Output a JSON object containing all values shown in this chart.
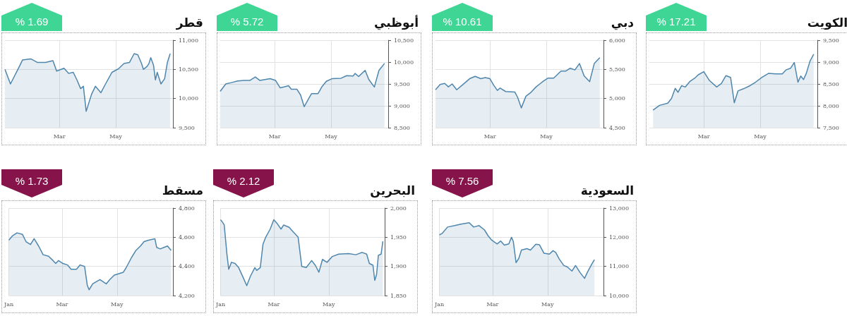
{
  "chart_data": [
    {
      "type": "area",
      "title": "قطر",
      "annotations": [
        "% 1.69"
      ],
      "color": "#4f86ad",
      "marker": "none",
      "grid": true,
      "xlim": [
        "--01-01",
        "--07-02"
      ],
      "xticks": [
        {
          "value": "--03-01",
          "label": "Mar"
        },
        {
          "value": "--05-01",
          "label": "May"
        }
      ],
      "ylim": [
        9500,
        11000
      ],
      "yticks": [
        {
          "value": 9500,
          "label": "9,500"
        },
        {
          "value": 10000,
          "label": "10,000"
        },
        {
          "value": 10500,
          "label": "10,500"
        },
        {
          "value": 11000,
          "label": "11,000"
        }
      ],
      "x": [
        "--01-01",
        "--01-07",
        "--01-16",
        "--01-20",
        "--01-29",
        "--02-05",
        "--02-14",
        "--02-22",
        "--02-26",
        "--03-06",
        "--03-11",
        "--03-16",
        "--03-20",
        "--03-24",
        "--03-27",
        "--03-30",
        "--04-05",
        "--04-09",
        "--04-15",
        "--04-20",
        "--04-27",
        "--05-04",
        "--05-10",
        "--05-16",
        "--05-21",
        "--05-25",
        "--05-29",
        "--05-31",
        "--06-04",
        "--06-06",
        "--06-08",
        "--06-11",
        "--06-13",
        "--06-15",
        "--06-19",
        "--06-23",
        "--06-26",
        "--06-29"
      ],
      "values": [
        10500,
        10250,
        10530,
        10660,
        10680,
        10620,
        10620,
        10650,
        10470,
        10520,
        10430,
        10450,
        10320,
        10170,
        10210,
        9780,
        10080,
        10210,
        10100,
        10250,
        10450,
        10510,
        10600,
        10620,
        10770,
        10750,
        10600,
        10500,
        10550,
        10600,
        10700,
        10570,
        10320,
        10450,
        10250,
        10340,
        10620,
        10770
      ]
    },
    {
      "type": "area",
      "title": "أبوظبي",
      "annotations": [
        "% 5.72"
      ],
      "color": "#4f86ad",
      "marker": "none",
      "grid": true,
      "xlim": [
        "--01-01",
        "--07-02"
      ],
      "xticks": [
        {
          "value": "--03-01",
          "label": "Mar"
        },
        {
          "value": "--05-01",
          "label": "May"
        }
      ],
      "ylim": [
        8500,
        10500
      ],
      "yticks": [
        {
          "value": 8500,
          "label": "8,500"
        },
        {
          "value": 9000,
          "label": "9,000"
        },
        {
          "value": 9500,
          "label": "9,500"
        },
        {
          "value": 10000,
          "label": "10,000"
        },
        {
          "value": 10500,
          "label": "10,500"
        }
      ],
      "x": [
        "--01-01",
        "--01-07",
        "--01-13",
        "--01-20",
        "--01-27",
        "--02-02",
        "--02-08",
        "--02-13",
        "--02-24",
        "--03-02",
        "--03-07",
        "--03-11",
        "--03-16",
        "--03-19",
        "--03-25",
        "--03-29",
        "--04-02",
        "--04-07",
        "--04-10",
        "--04-17",
        "--04-21",
        "--04-26",
        "--05-02",
        "--05-12",
        "--05-18",
        "--05-25",
        "--05-27",
        "--05-31",
        "--06-07",
        "--06-11",
        "--06-17",
        "--06-22",
        "--06-28"
      ],
      "values": [
        9330,
        9500,
        9530,
        9570,
        9580,
        9580,
        9660,
        9580,
        9620,
        9580,
        9410,
        9430,
        9460,
        9380,
        9380,
        9250,
        8980,
        9170,
        9280,
        9280,
        9430,
        9560,
        9620,
        9630,
        9690,
        9680,
        9740,
        9670,
        9810,
        9600,
        9430,
        9810,
        9970
      ]
    },
    {
      "type": "area",
      "title": "دبي",
      "annotations": [
        "% 10.61"
      ],
      "color": "#4f86ad",
      "marker": "none",
      "grid": true,
      "xlim": [
        "--01-01",
        "--07-02"
      ],
      "xticks": [
        {
          "value": "--03-01",
          "label": "Mar"
        },
        {
          "value": "--05-01",
          "label": "May"
        }
      ],
      "ylim": [
        4500,
        6000
      ],
      "yticks": [
        {
          "value": 4500,
          "label": "4,500"
        },
        {
          "value": 5000,
          "label": "5,000"
        },
        {
          "value": 5500,
          "label": "5,500"
        },
        {
          "value": 6000,
          "label": "6,000"
        }
      ],
      "x": [
        "--01-01",
        "--01-06",
        "--01-11",
        "--01-15",
        "--01-19",
        "--01-24",
        "--01-30",
        "--02-07",
        "--02-13",
        "--02-19",
        "--02-24",
        "--03-01",
        "--03-05",
        "--03-09",
        "--03-12",
        "--03-18",
        "--03-28",
        "--03-31",
        "--04-04",
        "--04-09",
        "--04-14",
        "--04-20",
        "--04-24",
        "--04-28",
        "--05-03",
        "--05-09",
        "--05-17",
        "--05-22",
        "--05-27",
        "--06-01",
        "--06-06",
        "--06-11",
        "--06-17",
        "--06-22",
        "--06-28"
      ],
      "values": [
        5150,
        5240,
        5260,
        5200,
        5250,
        5150,
        5230,
        5340,
        5380,
        5340,
        5360,
        5340,
        5230,
        5140,
        5180,
        5120,
        5110,
        5020,
        4840,
        5040,
        5100,
        5200,
        5250,
        5300,
        5350,
        5350,
        5470,
        5470,
        5520,
        5490,
        5600,
        5390,
        5290,
        5600,
        5700
      ]
    },
    {
      "type": "area",
      "title": "الكويت",
      "annotations": [
        "% 17.21"
      ],
      "color": "#4f86ad",
      "marker": "none",
      "grid": true,
      "xlim": [
        "--01-01",
        "--07-02"
      ],
      "xticks": [
        {
          "value": "--03-01",
          "label": "Mar"
        },
        {
          "value": "--05-01",
          "label": "May"
        }
      ],
      "ylim": [
        7500,
        9500
      ],
      "yticks": [
        {
          "value": 7500,
          "label": "7,500"
        },
        {
          "value": 8000,
          "label": "8,000"
        },
        {
          "value": 8500,
          "label": "8,500"
        },
        {
          "value": 9000,
          "label": "9,000"
        },
        {
          "value": 9500,
          "label": "9,500"
        }
      ],
      "x": [
        "--01-05",
        "--01-12",
        "--01-21",
        "--01-25",
        "--01-29",
        "--02-01",
        "--02-05",
        "--02-09",
        "--02-14",
        "--02-19",
        "--02-23",
        "--03-01",
        "--03-07",
        "--03-15",
        "--03-20",
        "--03-25",
        "--03-30",
        "--04-03",
        "--04-07",
        "--04-13",
        "--04-20",
        "--04-26",
        "--05-03",
        "--05-10",
        "--05-18",
        "--05-25",
        "--05-29",
        "--06-03",
        "--06-07",
        "--06-11",
        "--06-14",
        "--06-17",
        "--06-20",
        "--06-24",
        "--06-28"
      ],
      "values": [
        7900,
        8010,
        8060,
        8170,
        8400,
        8310,
        8460,
        8430,
        8560,
        8630,
        8710,
        8780,
        8580,
        8430,
        8510,
        8690,
        8650,
        8070,
        8340,
        8390,
        8460,
        8540,
        8650,
        8740,
        8730,
        8730,
        8820,
        8860,
        8990,
        8540,
        8680,
        8600,
        8740,
        9020,
        9180
      ]
    },
    {
      "type": "area",
      "title": "مسقط",
      "annotations": [
        "% 1.73"
      ],
      "color": "#4f86ad",
      "marker": "none",
      "grid": true,
      "xlim": [
        "--01-01",
        "--07-02"
      ],
      "xticks": [
        {
          "value": "--01-01",
          "label": "Jan"
        },
        {
          "value": "--03-01",
          "label": "Mar"
        },
        {
          "value": "--05-01",
          "label": "May"
        }
      ],
      "ylim": [
        4200,
        4800
      ],
      "yticks": [
        {
          "value": 4200,
          "label": "4,200"
        },
        {
          "value": 4400,
          "label": "4,400"
        },
        {
          "value": 4600,
          "label": "4,600"
        },
        {
          "value": 4800,
          "label": "4,800"
        }
      ],
      "x": [
        "--01-01",
        "--01-05",
        "--01-10",
        "--01-16",
        "--01-20",
        "--01-25",
        "--01-29",
        "--02-03",
        "--02-08",
        "--02-14",
        "--02-19",
        "--02-22",
        "--02-25",
        "--03-02",
        "--03-07",
        "--03-11",
        "--03-17",
        "--03-21",
        "--03-26",
        "--03-29",
        "--03-31",
        "--04-04",
        "--04-12",
        "--04-19",
        "--04-23",
        "--04-28",
        "--05-08",
        "--05-11",
        "--05-17",
        "--05-22",
        "--05-27",
        "--05-31",
        "--06-05",
        "--06-12",
        "--06-14",
        "--06-18",
        "--06-22",
        "--06-26",
        "--06-30"
      ],
      "values": [
        4580,
        4610,
        4630,
        4620,
        4570,
        4550,
        4590,
        4540,
        4480,
        4470,
        4440,
        4420,
        4440,
        4420,
        4410,
        4380,
        4380,
        4410,
        4400,
        4270,
        4240,
        4280,
        4310,
        4280,
        4310,
        4340,
        4360,
        4390,
        4460,
        4510,
        4540,
        4570,
        4580,
        4590,
        4530,
        4520,
        4530,
        4540,
        4510
      ]
    },
    {
      "type": "area",
      "title": "البحرين",
      "annotations": [
        "% 2.12"
      ],
      "color": "#4f86ad",
      "marker": "none",
      "grid": true,
      "xlim": [
        "--01-01",
        "--07-02"
      ],
      "xticks": [
        {
          "value": "--01-01",
          "label": "Jan"
        },
        {
          "value": "--03-01",
          "label": "Mar"
        },
        {
          "value": "--05-01",
          "label": "May"
        }
      ],
      "ylim": [
        1850,
        2000
      ],
      "yticks": [
        {
          "value": 1850,
          "label": "1,850"
        },
        {
          "value": 1900,
          "label": "1,900"
        },
        {
          "value": 1950,
          "label": "1,950"
        },
        {
          "value": 2000,
          "label": "2,000"
        }
      ],
      "x": [
        "--01-01",
        "--01-03",
        "--01-05",
        "--01-08",
        "--01-10",
        "--01-13",
        "--01-17",
        "--01-21",
        "--01-26",
        "--01-30",
        "--02-03",
        "--02-08",
        "--02-10",
        "--02-14",
        "--02-17",
        "--02-20",
        "--02-25",
        "--03-01",
        "--03-05",
        "--03-09",
        "--03-12",
        "--03-18",
        "--03-22",
        "--03-28",
        "--04-01",
        "--04-06",
        "--04-12",
        "--04-16",
        "--04-20",
        "--04-24",
        "--04-29",
        "--05-05",
        "--05-12",
        "--05-23",
        "--05-31",
        "--06-07",
        "--06-12",
        "--06-15",
        "--06-19",
        "--06-21",
        "--06-23",
        "--06-25",
        "--06-28",
        "--06-30"
      ],
      "values": [
        1980,
        1976,
        1971,
        1921,
        1895,
        1907,
        1905,
        1898,
        1881,
        1867,
        1883,
        1898,
        1893,
        1898,
        1938,
        1950,
        1964,
        1980,
        1973,
        1964,
        1971,
        1967,
        1960,
        1950,
        1900,
        1898,
        1910,
        1902,
        1890,
        1912,
        1907,
        1917,
        1921,
        1922,
        1920,
        1924,
        1921,
        1905,
        1902,
        1876,
        1886,
        1919,
        1921,
        1943
      ]
    },
    {
      "type": "area",
      "title": "السعودية",
      "annotations": [
        "% 7.56"
      ],
      "color": "#4f86ad",
      "marker": "none",
      "grid": true,
      "xlim": [
        "--01-01",
        "--07-02"
      ],
      "xticks": [
        {
          "value": "--01-01",
          "label": "Jan"
        },
        {
          "value": "--03-01",
          "label": "Mar"
        },
        {
          "value": "--05-01",
          "label": "May"
        }
      ],
      "ylim": [
        10000,
        13000
      ],
      "yticks": [
        {
          "value": 10000,
          "label": "10,000"
        },
        {
          "value": 11000,
          "label": "11,000"
        },
        {
          "value": 12000,
          "label": "12,000"
        },
        {
          "value": 13000,
          "label": "13,000"
        }
      ],
      "x": [
        "--01-01",
        "--01-04",
        "--01-10",
        "--01-18",
        "--01-25",
        "--02-03",
        "--02-08",
        "--02-14",
        "--02-20",
        "--02-24",
        "--02-28",
        "--03-06",
        "--03-10",
        "--03-14",
        "--03-19",
        "--03-22",
        "--03-24",
        "--03-27",
        "--03-30",
        "--04-02",
        "--04-08",
        "--04-12",
        "--04-18",
        "--04-22",
        "--04-27",
        "--05-03",
        "--05-07",
        "--05-10",
        "--05-14",
        "--05-19",
        "--05-23",
        "--05-28",
        "--06-01",
        "--06-06",
        "--06-11",
        "--06-14",
        "--06-19",
        "--06-22"
      ],
      "values": [
        12080,
        12130,
        12350,
        12400,
        12450,
        12500,
        12350,
        12400,
        12250,
        12050,
        11900,
        11770,
        11870,
        11730,
        11770,
        12000,
        11850,
        11130,
        11270,
        11560,
        11610,
        11560,
        11760,
        11740,
        11450,
        11420,
        11540,
        11480,
        11250,
        11030,
        10980,
        10840,
        11030,
        10790,
        10590,
        10790,
        11080,
        11230
      ]
    }
  ]
}
